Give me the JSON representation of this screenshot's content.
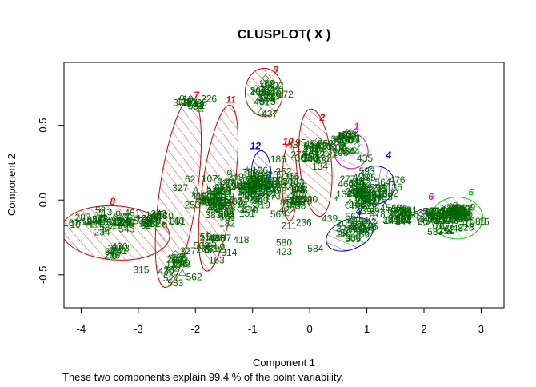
{
  "chart_data": {
    "type": "scatter",
    "title": "CLUSPLOT( X )",
    "xlabel": "Component 1",
    "ylabel": "Component 2",
    "caption": "These two components explain 99.4 % of the point variability.",
    "xlim": [
      -4.3,
      3.4
    ],
    "ylim": [
      -0.72,
      0.92
    ],
    "x_ticks": [
      -4,
      -3,
      -2,
      -1,
      0,
      1,
      2,
      3
    ],
    "y_ticks": [
      -0.5,
      0.0,
      0.5
    ],
    "y_tick_labels": [
      "-0.5",
      "0.0",
      "0.5"
    ],
    "grid": false,
    "legend": "none",
    "colors": {
      "points": "#006400",
      "red": "#ff0000",
      "blue": "#0000ff",
      "magenta": "#ff00ff",
      "green": "#00cd00",
      "cyan": "#00ffff",
      "ellipse_red": "#cd0000",
      "ellipse_blue": "#0000cd",
      "ellipse_green": "#00cd00",
      "ellipse_magenta": "#cd00cd"
    },
    "clusters": [
      {
        "id": "8",
        "color": "#ff0000",
        "label_at": [
          -3.45,
          -0.03
        ],
        "center": [
          -3.4,
          -0.22
        ],
        "rx": 0.95,
        "ry": 0.18,
        "angle_deg": -4,
        "ellipse_color": "#cd0000"
      },
      {
        "id": "7",
        "color": "#ff0000",
        "label_at": [
          -1.98,
          0.68
        ],
        "center": [
          -2.3,
          0.05
        ],
        "rx": 0.33,
        "ry": 0.64,
        "angle_deg": -8,
        "ellipse_color": "#cd0000"
      },
      {
        "id": "11",
        "color": "#ff0000",
        "label_at": [
          -1.38,
          0.65
        ],
        "center": [
          -1.6,
          0.08
        ],
        "rx": 0.28,
        "ry": 0.56,
        "angle_deg": -8,
        "ellipse_color": "#cd0000"
      },
      {
        "id": "9",
        "color": "#ff0000",
        "label_at": [
          -0.6,
          0.85
        ],
        "center": [
          -0.8,
          0.72
        ],
        "rx": 0.33,
        "ry": 0.16,
        "angle_deg": 0,
        "ellipse_color": "#cd0000"
      },
      {
        "id": "12",
        "color": "#0000ff",
        "label_at": [
          -0.95,
          0.34
        ],
        "center": [
          -0.85,
          0.18
        ],
        "rx": 0.17,
        "ry": 0.15,
        "angle_deg": 0,
        "ellipse_color": "#0000cd"
      },
      {
        "id": "10",
        "color": "#ff0000",
        "label_at": [
          -0.38,
          0.37
        ],
        "center": [
          -0.35,
          0.12
        ],
        "rx": 0.13,
        "ry": 0.26,
        "angle_deg": 0,
        "ellipse_color": "#cd0000"
      },
      {
        "id": "2",
        "color": "#ff0000",
        "label_at": [
          0.22,
          0.53
        ],
        "center": [
          0.1,
          0.25
        ],
        "rx": 0.28,
        "ry": 0.36,
        "angle_deg": 5,
        "ellipse_color": "#cd0000"
      },
      {
        "id": "1",
        "color": "#ff00ff",
        "label_at": [
          0.82,
          0.47
        ],
        "center": [
          0.72,
          0.33
        ],
        "rx": 0.3,
        "ry": 0.12,
        "angle_deg": 20,
        "ellipse_color": "#cd00cd"
      },
      {
        "id": "4",
        "color": "#0000ff",
        "label_at": [
          1.38,
          0.28
        ],
        "center": [
          1.15,
          0.1
        ],
        "rx": 0.33,
        "ry": 0.13,
        "angle_deg": -55,
        "ellipse_color": "#0000cd"
      },
      {
        "id": "3",
        "color": "#0000ff",
        "label_at": [
          0.87,
          -0.1
        ],
        "center": [
          0.7,
          -0.23
        ],
        "rx": 0.43,
        "ry": 0.1,
        "angle_deg": 22,
        "ellipse_color": "#0000cd"
      },
      {
        "id": "6",
        "color": "#ff00ff",
        "label_at": [
          2.12,
          0.0
        ],
        "center": [
          2.0,
          -0.12
        ],
        "rx": 0.12,
        "ry": 0.05,
        "angle_deg": 0,
        "ellipse_color": "#cd00cd"
      },
      {
        "id": "5",
        "color": "#00cd00",
        "label_at": [
          2.82,
          0.03
        ],
        "center": [
          2.58,
          -0.12
        ],
        "rx": 0.45,
        "ry": 0.14,
        "angle_deg": 0,
        "ellipse_color": "#00cd00"
      }
    ],
    "point_groups": [
      {
        "cx": -3.55,
        "cy": -0.14,
        "sx": 0.55,
        "sy": 0.06,
        "n": 40
      },
      {
        "cx": -3.45,
        "cy": -0.34,
        "sx": 0.15,
        "sy": 0.03,
        "n": 10
      },
      {
        "cx": -2.75,
        "cy": -0.15,
        "sx": 0.3,
        "sy": 0.05,
        "n": 25
      },
      {
        "cx": -2.3,
        "cy": -0.42,
        "sx": 0.25,
        "sy": 0.08,
        "n": 20
      },
      {
        "cx": -2.05,
        "cy": 0.64,
        "sx": 0.22,
        "sy": 0.03,
        "n": 14
      },
      {
        "cx": -1.6,
        "cy": 0.0,
        "sx": 0.35,
        "sy": 0.12,
        "n": 70
      },
      {
        "cx": -1.65,
        "cy": -0.3,
        "sx": 0.25,
        "sy": 0.08,
        "n": 20
      },
      {
        "cx": -1.0,
        "cy": 0.08,
        "sx": 0.45,
        "sy": 0.12,
        "n": 90
      },
      {
        "cx": -0.75,
        "cy": 0.72,
        "sx": 0.18,
        "sy": 0.08,
        "n": 28
      },
      {
        "cx": -0.3,
        "cy": 0.02,
        "sx": 0.2,
        "sy": 0.12,
        "n": 30
      },
      {
        "cx": 0.1,
        "cy": 0.32,
        "sx": 0.25,
        "sy": 0.08,
        "n": 30
      },
      {
        "cx": 0.6,
        "cy": 0.38,
        "sx": 0.25,
        "sy": 0.06,
        "n": 28
      },
      {
        "cx": 0.9,
        "cy": 0.05,
        "sx": 0.45,
        "sy": 0.13,
        "n": 75
      },
      {
        "cx": 0.8,
        "cy": -0.2,
        "sx": 0.35,
        "sy": 0.06,
        "n": 25
      },
      {
        "cx": 1.6,
        "cy": -0.1,
        "sx": 0.25,
        "sy": 0.06,
        "n": 30
      },
      {
        "cx": 2.2,
        "cy": -0.12,
        "sx": 0.25,
        "sy": 0.06,
        "n": 35
      },
      {
        "cx": 2.6,
        "cy": -0.1,
        "sx": 0.3,
        "sy": 0.06,
        "n": 50
      }
    ],
    "point_labels": [
      {
        "text": "315",
        "x": -2.95,
        "y": -0.47
      },
      {
        "text": "583",
        "x": -2.35,
        "y": -0.56
      },
      {
        "text": "580",
        "x": -0.45,
        "y": -0.29
      },
      {
        "text": "584",
        "x": 0.1,
        "y": -0.33
      },
      {
        "text": "423",
        "x": -0.45,
        "y": -0.35
      },
      {
        "text": "439",
        "x": 0.35,
        "y": -0.13
      },
      {
        "text": "437",
        "x": -0.7,
        "y": 0.57
      },
      {
        "text": "19",
        "x": -4.1,
        "y": -0.17
      },
      {
        "text": "15",
        "x": 3.05,
        "y": -0.15
      },
      {
        "text": "390",
        "x": 0.0,
        "y": 0.0
      },
      {
        "text": "186",
        "x": -0.55,
        "y": 0.27
      },
      {
        "text": "418",
        "x": -1.2,
        "y": -0.27
      },
      {
        "text": "566",
        "x": -0.55,
        "y": -0.1
      }
    ]
  }
}
